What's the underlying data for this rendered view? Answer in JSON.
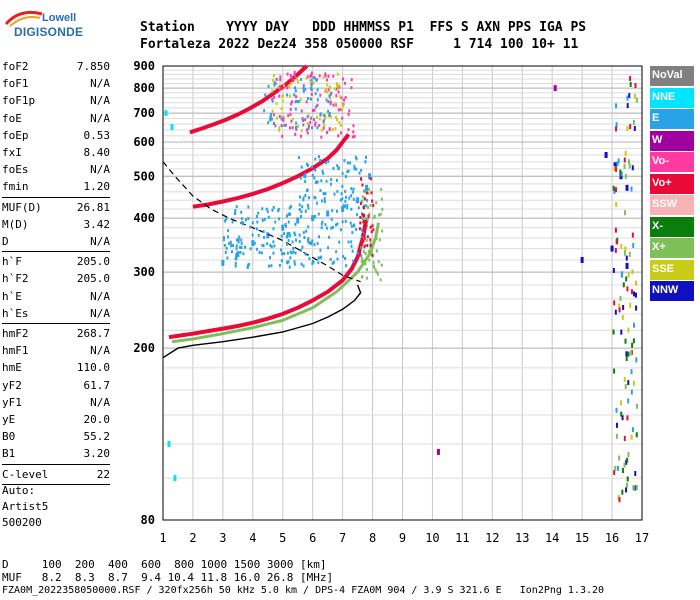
{
  "logo": {
    "line1": "Lowell",
    "line2": "DIGISONDE"
  },
  "header": {
    "line1": "Station    YYYY DAY   DDD HHMMSS P1  FFS S AXN PPS IGA PS",
    "line2": "Fortaleza 2022 Dez24 358 050000 RSF     1 714 100 10+ 11"
  },
  "params": {
    "group1": [
      {
        "label": "foF2",
        "value": "7.850"
      },
      {
        "label": "foF1",
        "value": "N/A"
      },
      {
        "label": "foF1p",
        "value": "N/A"
      },
      {
        "label": "foE",
        "value": "N/A"
      },
      {
        "label": "foEp",
        "value": "0.53"
      },
      {
        "label": "fxI",
        "value": "8.40"
      },
      {
        "label": "foEs",
        "value": "N/A"
      },
      {
        "label": "fmin",
        "value": "1.20"
      }
    ],
    "group2": [
      {
        "label": "MUF(D)",
        "value": "26.81"
      },
      {
        "label": "M(D)",
        "value": "3.42"
      },
      {
        "label": "D",
        "value": "N/A"
      }
    ],
    "group3": [
      {
        "label": "h`F",
        "value": "205.0"
      },
      {
        "label": "h`F2",
        "value": "205.0"
      },
      {
        "label": "h`E",
        "value": "N/A"
      },
      {
        "label": "h`Es",
        "value": "N/A"
      }
    ],
    "group4": [
      {
        "label": "hmF2",
        "value": "268.7"
      },
      {
        "label": "hmF1",
        "value": "N/A"
      },
      {
        "label": "hmE",
        "value": "110.0"
      },
      {
        "label": "yF2",
        "value": "61.7"
      },
      {
        "label": "yF1",
        "value": "N/A"
      },
      {
        "label": "yE",
        "value": "20.0"
      },
      {
        "label": "B0",
        "value": "55.2"
      },
      {
        "label": "B1",
        "value": "3.20"
      }
    ],
    "group5": [
      {
        "label": "C-level",
        "value": "22"
      }
    ]
  },
  "autoscale": {
    "line1": "Auto:",
    "line2": "Artist5",
    "line3": "500200"
  },
  "legend": [
    {
      "label": "NoVal",
      "color": "#808080"
    },
    {
      "label": "NNE",
      "color": "#00e5ff"
    },
    {
      "label": "E",
      "color": "#29a3e8"
    },
    {
      "label": "W",
      "color": "#a0009f"
    },
    {
      "label": "Vo-",
      "color": "#ff3aa0"
    },
    {
      "label": "Vo+",
      "color": "#ea0a3a"
    },
    {
      "label": "SSW",
      "color": "#f7b3b6"
    },
    {
      "label": "X-",
      "color": "#0a7d0a"
    },
    {
      "label": "X+",
      "color": "#7fbf5a"
    },
    {
      "label": "SSE",
      "color": "#c8cc14"
    },
    {
      "label": "NNW",
      "color": "#1010c0"
    }
  ],
  "bottom": {
    "line1": "D     100  200  400  600  800 1000 1500 3000 [km]",
    "line2": "MUF   8.2  8.3  8.7  9.4 10.4 11.8 16.0 26.8 [MHz]",
    "line3": "FZA0M_2022358050000.RSF / 320fx256h 50 kHz 5.0 km / DPS-4 FZA0M 904 / 3.9 S 321.6 E   Ion2Png 1.3.20"
  },
  "chart_data": {
    "type": "scatter",
    "title": "",
    "xlabel": "",
    "ylabel": "",
    "xlim": [
      1,
      17
    ],
    "ylim": [
      80,
      900
    ],
    "y_scale": "log",
    "x_ticks": [
      1,
      2,
      3,
      4,
      5,
      6,
      7,
      8,
      9,
      10,
      11,
      12,
      13,
      14,
      15,
      16,
      17
    ],
    "y_ticks": [
      80,
      200,
      300,
      400,
      500,
      600,
      700,
      800,
      900
    ],
    "grid": true,
    "series": [
      {
        "name": "Vo+",
        "color": "#ea0a3a",
        "points": [
          [
            1.2,
            212
          ],
          [
            1.6,
            214
          ],
          [
            2.0,
            216
          ],
          [
            2.5,
            219
          ],
          [
            3.0,
            222
          ],
          [
            3.5,
            225
          ],
          [
            4.0,
            229
          ],
          [
            4.5,
            234
          ],
          [
            5.0,
            240
          ],
          [
            5.5,
            248
          ],
          [
            6.0,
            258
          ],
          [
            6.5,
            270
          ],
          [
            7.0,
            287
          ],
          [
            7.3,
            305
          ],
          [
            7.5,
            325
          ],
          [
            7.6,
            345
          ],
          [
            7.7,
            365
          ],
          [
            7.75,
            385
          ],
          [
            7.8,
            400
          ]
        ]
      },
      {
        "name": "Vo+",
        "color": "#ea0a3a",
        "points": [
          [
            2.0,
            425
          ],
          [
            2.5,
            430
          ],
          [
            3.0,
            437
          ],
          [
            3.5,
            445
          ],
          [
            4.0,
            455
          ],
          [
            4.5,
            467
          ],
          [
            5.0,
            482
          ],
          [
            5.5,
            500
          ],
          [
            6.0,
            522
          ],
          [
            6.5,
            550
          ],
          [
            6.8,
            575
          ],
          [
            7.0,
            600
          ],
          [
            7.2,
            625
          ]
        ]
      },
      {
        "name": "Vo+",
        "color": "#ea0a3a",
        "points": [
          [
            1.9,
            632
          ],
          [
            2.3,
            645
          ],
          [
            2.7,
            660
          ],
          [
            3.1,
            676
          ],
          [
            3.5,
            695
          ],
          [
            3.9,
            718
          ],
          [
            4.3,
            745
          ],
          [
            4.7,
            778
          ],
          [
            5.1,
            815
          ],
          [
            5.5,
            860
          ],
          [
            5.8,
            900
          ]
        ]
      },
      {
        "name": "X+",
        "color": "#7fbf5a",
        "points": [
          [
            1.3,
            207
          ],
          [
            2.0,
            210
          ],
          [
            3.0,
            216
          ],
          [
            4.0,
            223
          ],
          [
            5.0,
            232
          ],
          [
            6.0,
            248
          ],
          [
            6.8,
            270
          ],
          [
            7.5,
            300
          ],
          [
            7.9,
            330
          ],
          [
            8.1,
            360
          ],
          [
            8.2,
            390
          ]
        ]
      },
      {
        "name": "E",
        "color": "#29a3e8",
        "points": [
          [
            3.0,
            315
          ],
          [
            3.5,
            330
          ],
          [
            4.0,
            350
          ],
          [
            4.5,
            365
          ],
          [
            5.0,
            380
          ],
          [
            5.5,
            395
          ],
          [
            6.0,
            400
          ],
          [
            6.5,
            410
          ],
          [
            7.0,
            420
          ],
          [
            7.5,
            440
          ],
          [
            7.8,
            470
          ],
          [
            7.9,
            500
          ]
        ]
      },
      {
        "name": "NNW",
        "color": "#1010c0",
        "points": [
          [
            15.8,
            560
          ],
          [
            16.1,
            530
          ],
          [
            16.3,
            500
          ],
          [
            16.5,
            470
          ],
          [
            15.0,
            320
          ],
          [
            16.0,
            340
          ],
          [
            16.5,
            310
          ]
        ]
      },
      {
        "name": "NNE",
        "color": "#00e5ff",
        "points": [
          [
            1.2,
            120
          ],
          [
            1.4,
            100
          ],
          [
            1.1,
            700
          ],
          [
            1.3,
            650
          ]
        ]
      },
      {
        "name": "W",
        "color": "#a0009f",
        "points": [
          [
            10.2,
            115
          ],
          [
            14.1,
            800
          ]
        ]
      },
      {
        "name": "profile",
        "color": "#000000",
        "points": [
          [
            1.0,
            190
          ],
          [
            1.5,
            200
          ],
          [
            2.0,
            203
          ],
          [
            3.0,
            207
          ],
          [
            4.0,
            212
          ],
          [
            5.0,
            218
          ],
          [
            6.0,
            228
          ],
          [
            6.5,
            236
          ],
          [
            7.0,
            246
          ],
          [
            7.4,
            258
          ],
          [
            7.6,
            268.7
          ],
          [
            7.5,
            280
          ]
        ]
      },
      {
        "name": "MUF",
        "color": "#000000",
        "points": [
          [
            1.0,
            540
          ],
          [
            1.4,
            500
          ],
          [
            2.0,
            450
          ],
          [
            2.6,
            420
          ],
          [
            3.2,
            400
          ],
          [
            4.0,
            380
          ],
          [
            5.0,
            355
          ],
          [
            5.8,
            330
          ],
          [
            6.5,
            310
          ],
          [
            7.0,
            295
          ],
          [
            7.6,
            285
          ]
        ]
      }
    ]
  }
}
